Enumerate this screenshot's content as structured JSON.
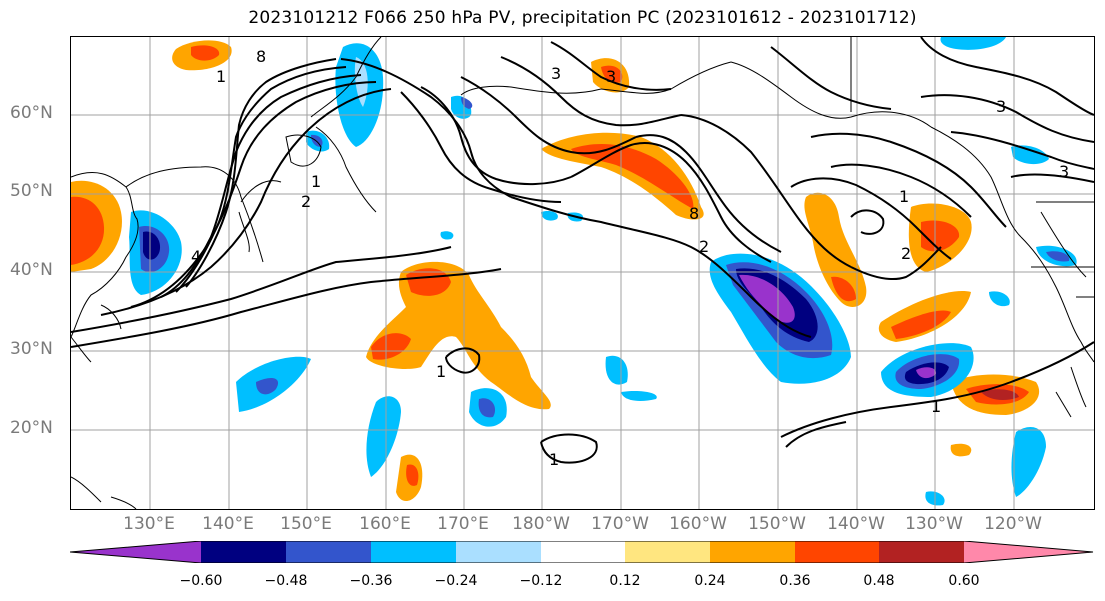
{
  "title": "2023101212 F066 250 hPa PV, precipitation PC (2023101612 - 2023101712)",
  "latitude_labels": [
    "60°N",
    "50°N",
    "40°N",
    "30°N",
    "20°N"
  ],
  "longitude_labels": [
    "130°E",
    "140°E",
    "150°E",
    "160°E",
    "170°E",
    "180°W",
    "170°W",
    "160°W",
    "150°W",
    "140°W",
    "130°W",
    "120°W"
  ],
  "contour_labels": [
    "8",
    "1",
    "2",
    "3",
    "4",
    "8",
    "1",
    "2",
    "3",
    "1",
    "1",
    "1",
    "2",
    "3",
    "3",
    "1"
  ],
  "colorbar": {
    "colors": [
      "#9933cc",
      "#000080",
      "#3355cc",
      "#00bfff",
      "#aadfff",
      "#ffffff",
      "#ffe680",
      "#ffa500",
      "#ff4500",
      "#b22222",
      "#ff88aa"
    ],
    "ticks": [
      "−0.60",
      "−0.48",
      "−0.36",
      "−0.24",
      "−0.12",
      "0.12",
      "0.24",
      "0.36",
      "0.48",
      "0.60"
    ]
  }
}
